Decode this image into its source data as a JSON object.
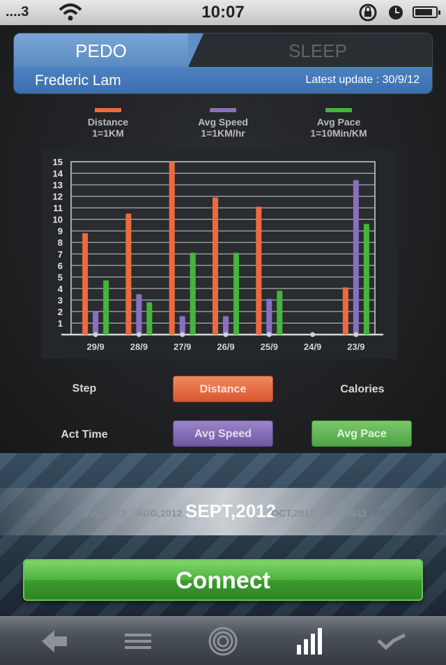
{
  "status_bar": {
    "carrier": "....3",
    "time": "10:07",
    "icons": [
      "wifi-icon",
      "rotation-lock-icon",
      "alarm-clock-icon",
      "battery-icon"
    ]
  },
  "tabs": [
    {
      "label": "PEDO",
      "active": true
    },
    {
      "label": "SLEEP",
      "active": false
    }
  ],
  "user": {
    "name": "Frederic Lam",
    "latest_update": "Latest update :  30/9/12"
  },
  "legend": [
    {
      "name": "Distance",
      "scale": "1=1KM",
      "color": "#ee6a3e"
    },
    {
      "name": "Avg Speed",
      "scale": "1=1KM/hr",
      "color": "#8a6fc0"
    },
    {
      "name": "Avg Pace",
      "scale": "1=10Min/KM",
      "color": "#45b53c"
    }
  ],
  "chart_data": {
    "type": "bar",
    "categories": [
      "29/9",
      "28/9",
      "27/9",
      "26/9",
      "25/9",
      "24/9",
      "23/9"
    ],
    "series": [
      {
        "name": "Distance",
        "color": "#ee6a3e",
        "values": [
          8.8,
          10.5,
          15,
          11.9,
          11.1,
          0,
          4.1
        ]
      },
      {
        "name": "Avg Speed",
        "color": "#8a6fc0",
        "values": [
          2.0,
          3.5,
          1.6,
          1.6,
          3.1,
          0,
          13.4
        ]
      },
      {
        "name": "Avg Pace",
        "color": "#45b53c",
        "values": [
          4.7,
          2.8,
          7.1,
          7.1,
          3.8,
          0,
          9.6
        ]
      }
    ],
    "yticks": [
      "1",
      "2",
      "3",
      "4",
      "5",
      "6",
      "7",
      "8",
      "9",
      "10",
      "11",
      "12",
      "13",
      "14",
      "15"
    ],
    "ylim": [
      0,
      15
    ],
    "grid": true
  },
  "metrics": {
    "step": "Step",
    "distance": "Distance",
    "calories": "Calories",
    "act_time": "Act Time",
    "avg_speed": "Avg Speed",
    "avg_pace": "Avg Pace"
  },
  "months": {
    "far_left": "JUN,2012",
    "prev2": "JUL,2012",
    "prev1": "AUG,2012",
    "current": "SEPT,2012",
    "next1": "OCT,2012",
    "next2": "NOV,2012",
    "far_right": "DEC,2012"
  },
  "connect_label": "Connect",
  "bottom_nav": [
    "back-arrow-icon",
    "menu-icon",
    "target-icon",
    "bar-chart-icon",
    "trend-icon"
  ]
}
